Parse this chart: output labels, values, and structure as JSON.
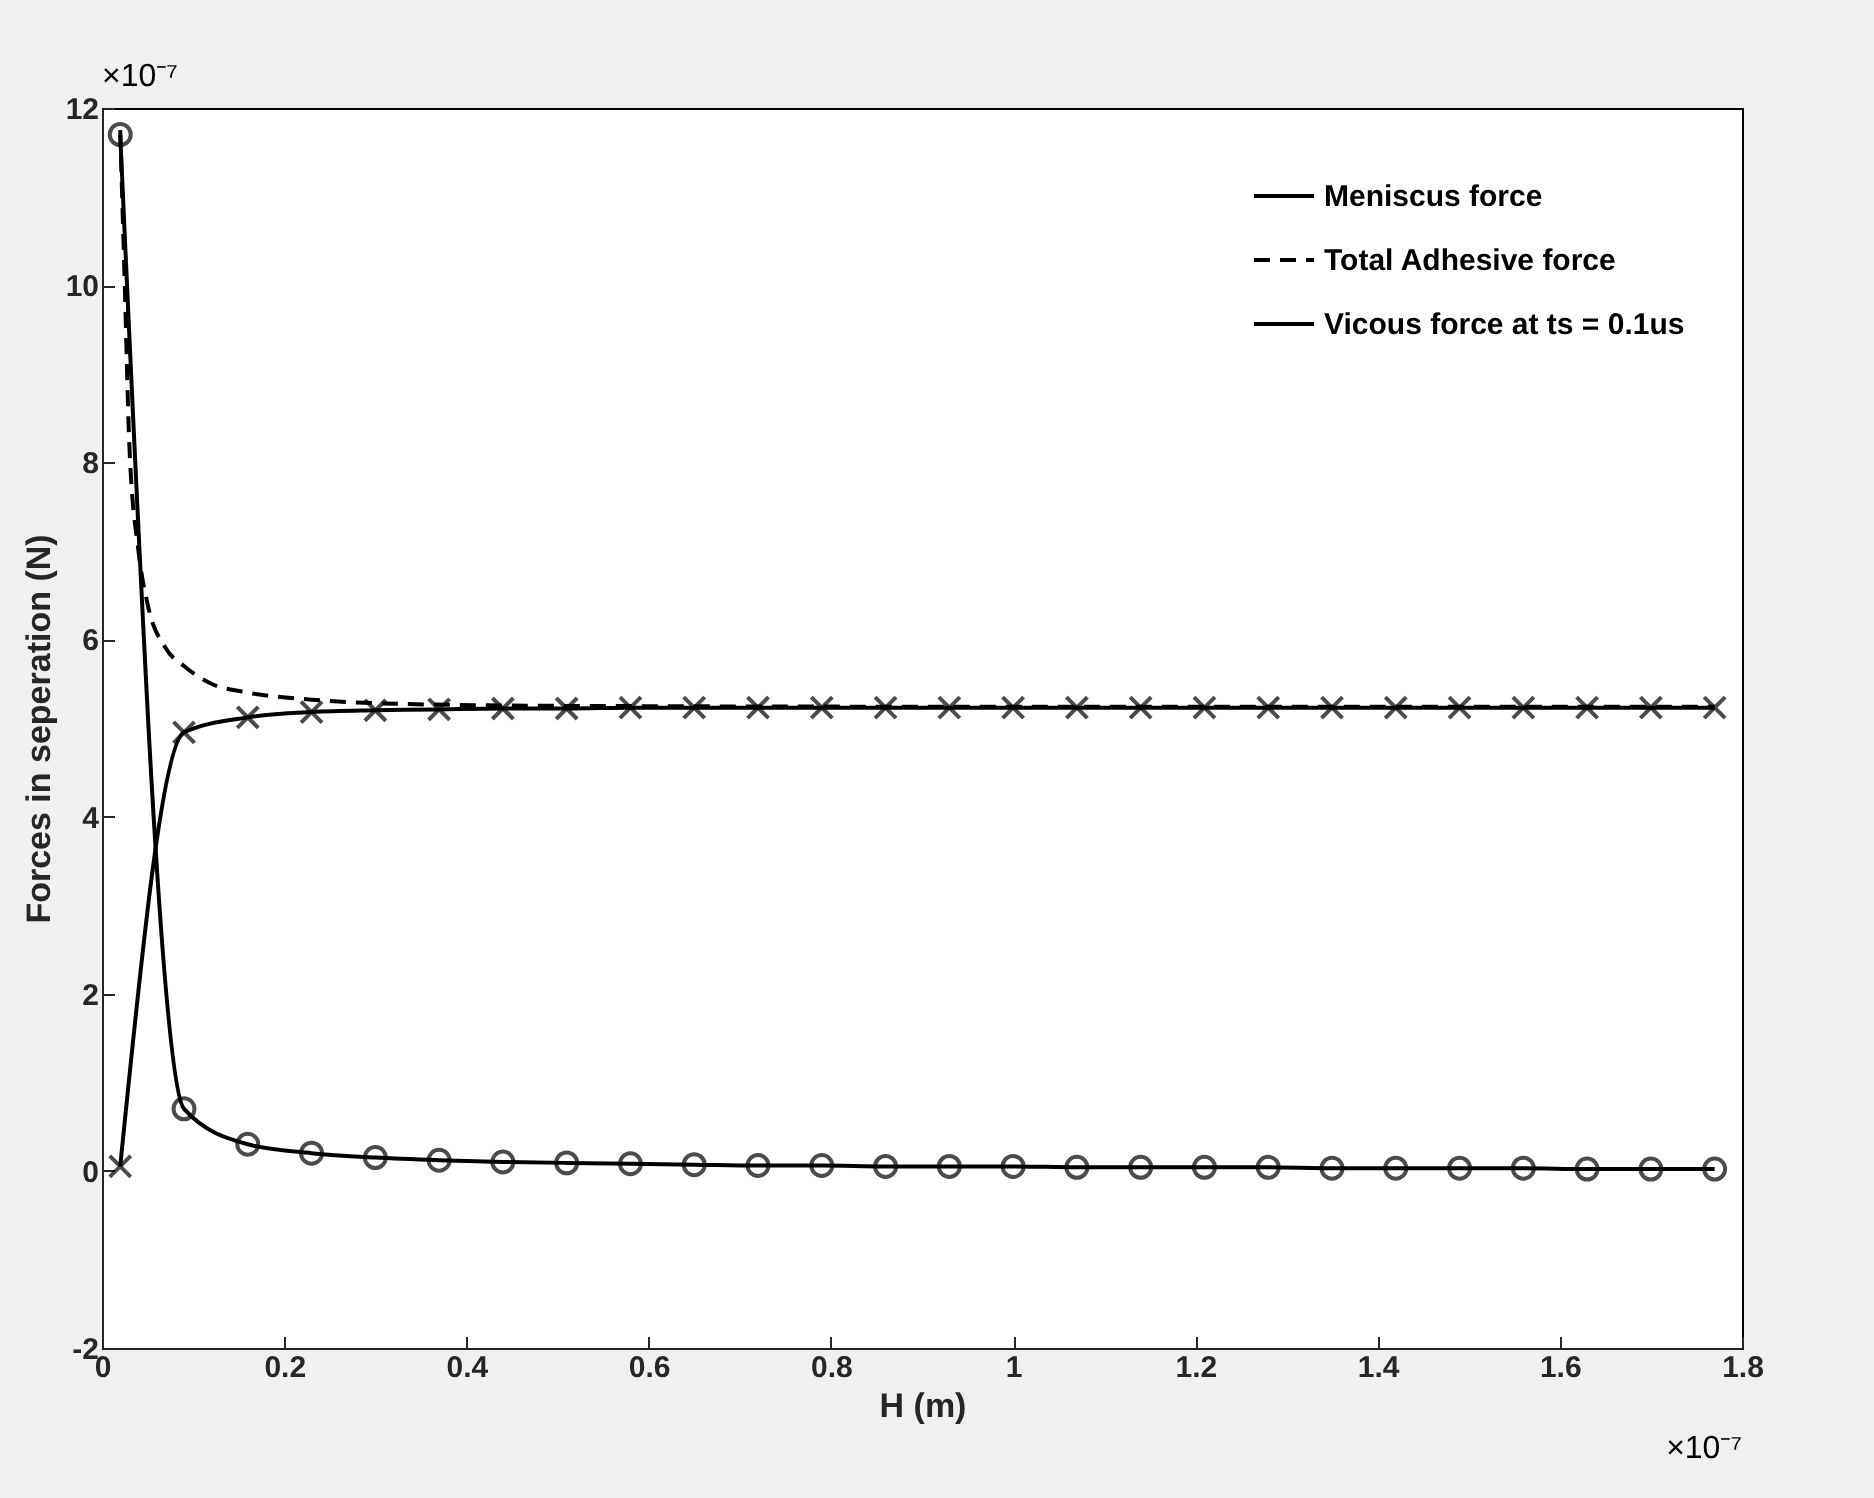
{
  "chart_data": {
    "type": "line",
    "xlabel": "H (m)",
    "ylabel": "Forces in seperation (N)",
    "xlim": [
      0,
      1.8
    ],
    "xticks": [
      0,
      0.2,
      0.4,
      0.6,
      0.8,
      1,
      1.2,
      1.4,
      1.6,
      1.8
    ],
    "ylim": [
      -2,
      12
    ],
    "yticks": [
      -2,
      0,
      2,
      4,
      6,
      8,
      10,
      12
    ],
    "x": [
      0.02,
      0.09,
      0.16,
      0.23,
      0.3,
      0.37,
      0.44,
      0.51,
      0.58,
      0.65,
      0.72,
      0.79,
      0.86,
      0.93,
      1.0,
      1.07,
      1.14,
      1.21,
      1.28,
      1.35,
      1.42,
      1.49,
      1.56,
      1.63,
      1.7,
      1.77
    ],
    "series": [
      {
        "name": "Meniscus force",
        "color": "#000000",
        "marker": "circle",
        "line_style": "solid",
        "values": [
          11.7,
          0.7,
          0.3,
          0.2,
          0.15,
          0.12,
          0.1,
          0.09,
          0.08,
          0.07,
          0.06,
          0.06,
          0.05,
          0.05,
          0.05,
          0.04,
          0.04,
          0.04,
          0.04,
          0.03,
          0.03,
          0.03,
          0.03,
          0.02,
          0.02,
          0.02
        ]
      },
      {
        "name": "Total Adhesive force",
        "color": "#000000",
        "marker": "none",
        "line_style": "dashed",
        "x": [
          0.02,
          0.025,
          0.03,
          0.04,
          0.05,
          0.07,
          0.09,
          0.12,
          0.16,
          0.23,
          0.3,
          0.5,
          1.0,
          1.77
        ],
        "values": [
          11.75,
          10,
          8.2,
          7,
          6.4,
          5.9,
          5.7,
          5.5,
          5.4,
          5.32,
          5.28,
          5.25,
          5.24,
          5.24
        ]
      },
      {
        "name": "Vicous force at ts = 0.1us",
        "color": "#000000",
        "marker": "cross",
        "line_style": "solid",
        "values": [
          0.05,
          4.95,
          5.12,
          5.18,
          5.2,
          5.21,
          5.22,
          5.22,
          5.23,
          5.23,
          5.23,
          5.23,
          5.23,
          5.23,
          5.23,
          5.23,
          5.23,
          5.23,
          5.23,
          5.23,
          5.23,
          5.23,
          5.23,
          5.23,
          5.23,
          5.23
        ]
      }
    ],
    "legend": "top right",
    "grid": false,
    "annotations": [
      "×10⁻⁷",
      "×10⁻⁷"
    ]
  }
}
